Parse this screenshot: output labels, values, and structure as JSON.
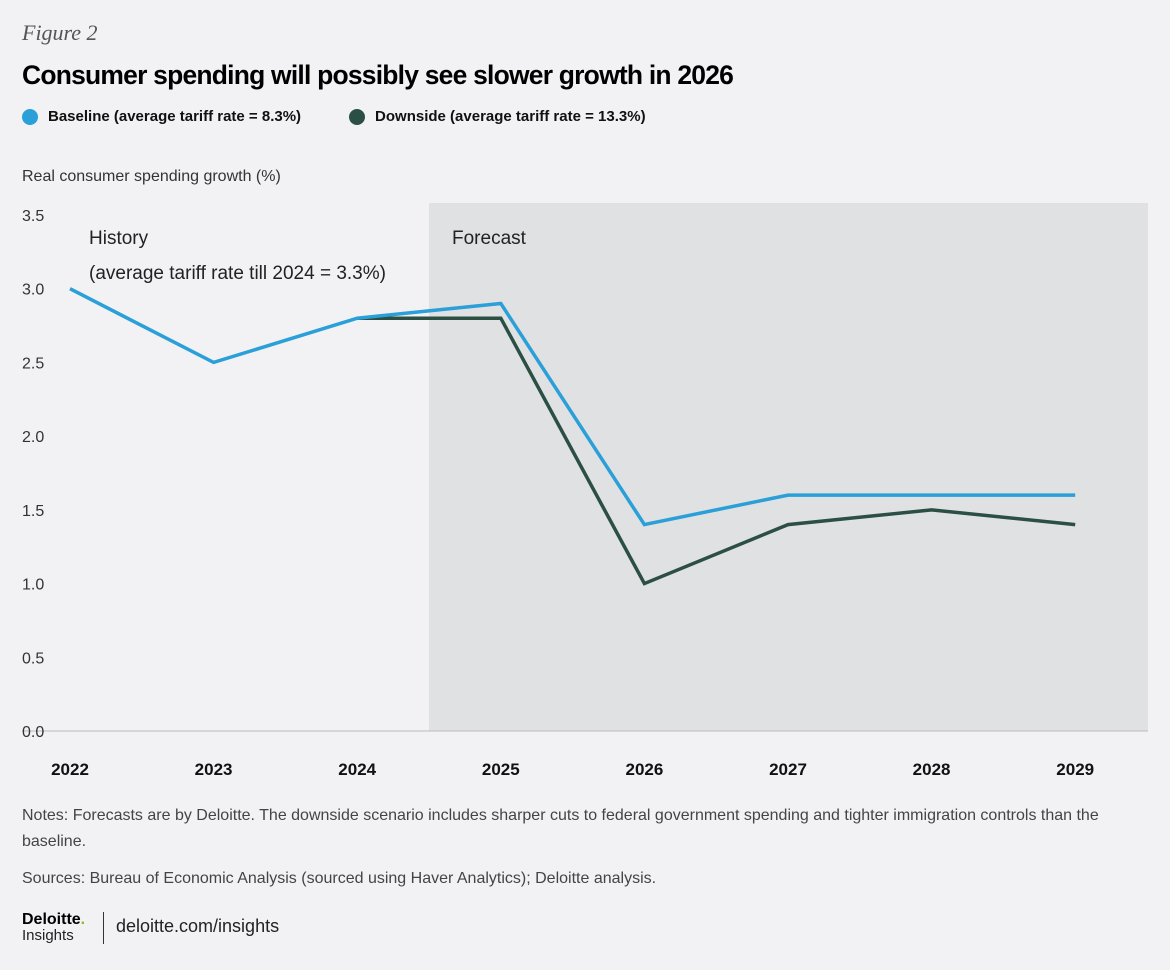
{
  "figure_label": "Figure 2",
  "logo": {
    "brand": "Deloitte",
    "dot": ".",
    "sub": "Insights"
  },
  "url": "deloitte.com/insights",
  "notes": "Notes: Forecasts are by Deloitte. The downside scenario includes sharper cuts to federal government spending and tighter immigration controls than the baseline.",
  "sources": "Sources: Bureau of Economic Analysis (sourced using Haver Analytics); Deloitte analysis.",
  "chart_data": {
    "type": "line",
    "title": "Consumer spending will possibly see slower growth in 2026",
    "ylabel": "Real consumer spending growth (%)",
    "xlabel": "",
    "categories": [
      "2022",
      "2023",
      "2024",
      "2025",
      "2026",
      "2027",
      "2028",
      "2029"
    ],
    "ylim": [
      0,
      3.5
    ],
    "yticks": [
      "0.0",
      "0.5",
      "1.0",
      "1.5",
      "2.0",
      "2.5",
      "3.0",
      "3.5"
    ],
    "grid": false,
    "legend": "top-left",
    "series": [
      {
        "name": "Baseline (average tariff rate = 8.3%)",
        "color": "#2a9fd8",
        "values": [
          3.0,
          2.5,
          2.8,
          2.9,
          1.4,
          1.6,
          1.6,
          1.6
        ]
      },
      {
        "name": "Downside (average tariff rate = 13.3%)",
        "color": "#2c4f44",
        "values": [
          null,
          null,
          2.8,
          2.8,
          1.0,
          1.4,
          1.5,
          1.4
        ]
      }
    ],
    "annotations": {
      "history": "History",
      "history_sub": "(average tariff rate till 2024 = 3.3%)",
      "forecast": "Forecast",
      "forecast_start": "2024.5",
      "forecast_color": "#e0e1e3"
    }
  }
}
